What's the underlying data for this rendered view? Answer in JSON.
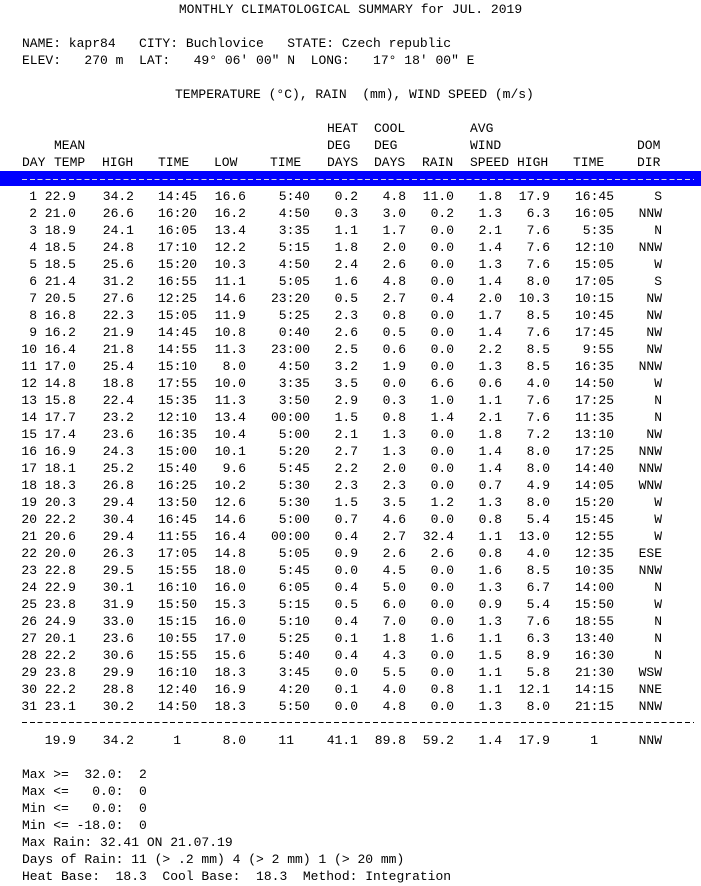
{
  "title": "MONTHLY CLIMATOLOGICAL SUMMARY for JUL. 2019",
  "station": [
    "NAME: kapr84   CITY: Buchlovice   STATE: Czech republic",
    "ELEV:   270 m  LAT:   49° 06' 00\" N  LONG:   17° 18' 00\" E"
  ],
  "units": "TEMPERATURE (°C), RAIN  (mm), WIND SPEED (m/s)",
  "header": {
    "line1": [
      "HEAT",
      "COOL",
      "AVG"
    ],
    "line2": [
      "MEAN",
      "DEG",
      "DEG",
      "WIND",
      "DOM"
    ],
    "line3": [
      "DAY",
      "TEMP",
      "HIGH",
      "TIME",
      "LOW",
      "TIME",
      "DAYS",
      "DAYS",
      "RAIN",
      "SPEED",
      "HIGH",
      "TIME",
      "DIR"
    ]
  },
  "table": {
    "rows": [
      [
        "1",
        "22.9",
        "34.2",
        "14:45",
        "16.6",
        "5:40",
        "0.2",
        "4.8",
        "11.0",
        "1.8",
        "17.9",
        "16:45",
        "S"
      ],
      [
        "2",
        "21.0",
        "26.6",
        "16:20",
        "16.2",
        "4:50",
        "0.3",
        "3.0",
        "0.2",
        "1.3",
        "6.3",
        "16:05",
        "NNW"
      ],
      [
        "3",
        "18.9",
        "24.1",
        "16:05",
        "13.4",
        "3:35",
        "1.1",
        "1.7",
        "0.0",
        "2.1",
        "7.6",
        "5:35",
        "N"
      ],
      [
        "4",
        "18.5",
        "24.8",
        "17:10",
        "12.2",
        "5:15",
        "1.8",
        "2.0",
        "0.0",
        "1.4",
        "7.6",
        "12:10",
        "NNW"
      ],
      [
        "5",
        "18.5",
        "25.6",
        "15:20",
        "10.3",
        "4:50",
        "2.4",
        "2.6",
        "0.0",
        "1.3",
        "7.6",
        "15:05",
        "W"
      ],
      [
        "6",
        "21.4",
        "31.2",
        "16:55",
        "11.1",
        "5:05",
        "1.6",
        "4.8",
        "0.0",
        "1.4",
        "8.0",
        "17:05",
        "S"
      ],
      [
        "7",
        "20.5",
        "27.6",
        "12:25",
        "14.6",
        "23:20",
        "0.5",
        "2.7",
        "0.4",
        "2.0",
        "10.3",
        "10:15",
        "NW"
      ],
      [
        "8",
        "16.8",
        "22.3",
        "15:05",
        "11.9",
        "5:25",
        "2.3",
        "0.8",
        "0.0",
        "1.7",
        "8.5",
        "10:45",
        "NW"
      ],
      [
        "9",
        "16.2",
        "21.9",
        "14:45",
        "10.8",
        "0:40",
        "2.6",
        "0.5",
        "0.0",
        "1.4",
        "7.6",
        "17:45",
        "NW"
      ],
      [
        "10",
        "16.4",
        "21.8",
        "14:55",
        "11.3",
        "23:00",
        "2.5",
        "0.6",
        "0.0",
        "2.2",
        "8.5",
        "9:55",
        "NW"
      ],
      [
        "11",
        "17.0",
        "25.4",
        "15:10",
        "8.0",
        "4:50",
        "3.2",
        "1.9",
        "0.0",
        "1.3",
        "8.5",
        "16:35",
        "NNW"
      ],
      [
        "12",
        "14.8",
        "18.8",
        "17:55",
        "10.0",
        "3:35",
        "3.5",
        "0.0",
        "6.6",
        "0.6",
        "4.0",
        "14:50",
        "W"
      ],
      [
        "13",
        "15.8",
        "22.4",
        "15:35",
        "11.3",
        "3:50",
        "2.9",
        "0.3",
        "1.0",
        "1.1",
        "7.6",
        "17:25",
        "N"
      ],
      [
        "14",
        "17.7",
        "23.2",
        "12:10",
        "13.4",
        "00:00",
        "1.5",
        "0.8",
        "1.4",
        "2.1",
        "7.6",
        "11:35",
        "N"
      ],
      [
        "15",
        "17.4",
        "23.6",
        "16:35",
        "10.4",
        "5:00",
        "2.1",
        "1.3",
        "0.0",
        "1.8",
        "7.2",
        "13:10",
        "NW"
      ],
      [
        "16",
        "16.9",
        "24.3",
        "15:00",
        "10.1",
        "5:20",
        "2.7",
        "1.3",
        "0.0",
        "1.4",
        "8.0",
        "17:25",
        "NNW"
      ],
      [
        "17",
        "18.1",
        "25.2",
        "15:40",
        "9.6",
        "5:45",
        "2.2",
        "2.0",
        "0.0",
        "1.4",
        "8.0",
        "14:40",
        "NNW"
      ],
      [
        "18",
        "18.3",
        "26.8",
        "16:25",
        "10.2",
        "5:30",
        "2.3",
        "2.3",
        "0.0",
        "0.7",
        "4.9",
        "14:05",
        "WNW"
      ],
      [
        "19",
        "20.3",
        "29.4",
        "13:50",
        "12.6",
        "5:30",
        "1.5",
        "3.5",
        "1.2",
        "1.3",
        "8.0",
        "15:20",
        "W"
      ],
      [
        "20",
        "22.2",
        "30.4",
        "16:45",
        "14.6",
        "5:00",
        "0.7",
        "4.6",
        "0.0",
        "0.8",
        "5.4",
        "15:45",
        "W"
      ],
      [
        "21",
        "20.6",
        "29.4",
        "11:55",
        "16.4",
        "00:00",
        "0.4",
        "2.7",
        "32.4",
        "1.1",
        "13.0",
        "12:55",
        "W"
      ],
      [
        "22",
        "20.0",
        "26.3",
        "17:05",
        "14.8",
        "5:05",
        "0.9",
        "2.6",
        "2.6",
        "0.8",
        "4.0",
        "12:35",
        "ESE"
      ],
      [
        "23",
        "22.8",
        "29.5",
        "15:55",
        "18.0",
        "5:45",
        "0.0",
        "4.5",
        "0.0",
        "1.6",
        "8.5",
        "10:35",
        "NNW"
      ],
      [
        "24",
        "22.9",
        "30.1",
        "16:10",
        "16.0",
        "6:05",
        "0.4",
        "5.0",
        "0.0",
        "1.3",
        "6.7",
        "14:00",
        "N"
      ],
      [
        "25",
        "23.8",
        "31.9",
        "15:50",
        "15.3",
        "5:15",
        "0.5",
        "6.0",
        "0.0",
        "0.9",
        "5.4",
        "15:50",
        "W"
      ],
      [
        "26",
        "24.9",
        "33.0",
        "15:15",
        "16.0",
        "5:10",
        "0.4",
        "7.0",
        "0.0",
        "1.3",
        "7.6",
        "18:55",
        "N"
      ],
      [
        "27",
        "20.1",
        "23.6",
        "10:55",
        "17.0",
        "5:25",
        "0.1",
        "1.8",
        "1.6",
        "1.1",
        "6.3",
        "13:40",
        "N"
      ],
      [
        "28",
        "22.2",
        "30.6",
        "15:55",
        "15.6",
        "5:40",
        "0.4",
        "4.3",
        "0.0",
        "1.5",
        "8.9",
        "16:30",
        "N"
      ],
      [
        "29",
        "23.8",
        "29.9",
        "16:10",
        "18.3",
        "3:45",
        "0.0",
        "5.5",
        "0.0",
        "1.1",
        "5.8",
        "21:30",
        "WSW"
      ],
      [
        "30",
        "22.2",
        "28.8",
        "12:40",
        "16.9",
        "4:20",
        "0.1",
        "4.0",
        "0.8",
        "1.1",
        "12.1",
        "14:15",
        "NNE"
      ],
      [
        "31",
        "23.1",
        "30.2",
        "14:50",
        "18.3",
        "5:50",
        "0.0",
        "4.8",
        "0.0",
        "1.3",
        "8.0",
        "21:15",
        "NNW"
      ]
    ],
    "totals": [
      "19.9",
      "34.2",
      "1",
      "8.0",
      "11",
      "41.1",
      "89.8",
      "59.2",
      "1.4",
      "17.9",
      "1",
      "NNW"
    ]
  },
  "footer": [
    "Max >=  32.0:  2",
    "Max <=   0.0:  0",
    "Min <=   0.0:  0",
    "Min <= -18.0:  0",
    "Max Rain: 32.41 ON 21.07.19",
    "Days of Rain: 11 (> .2 mm) 4 (> 2 mm) 1 (> 20 mm)",
    "Heat Base:  18.3  Cool Base:  18.3  Method: Integration"
  ]
}
